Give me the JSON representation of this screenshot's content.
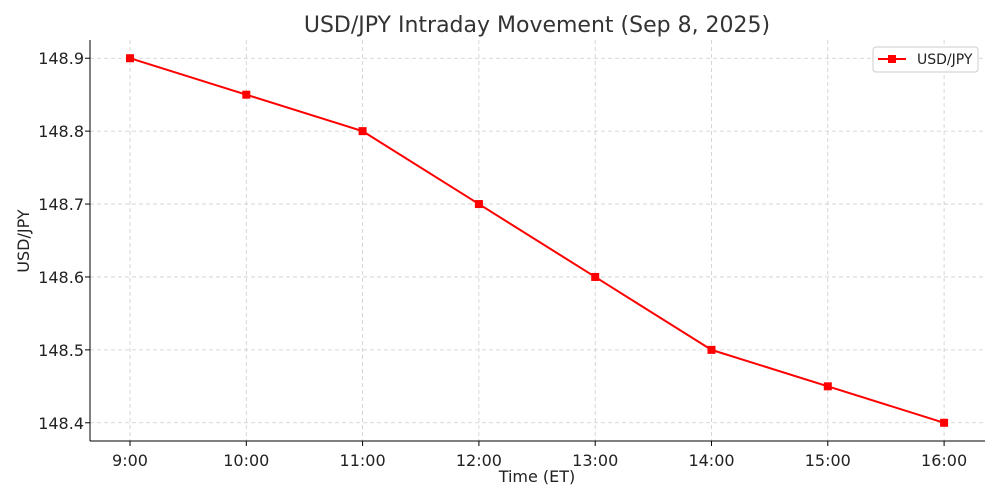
{
  "chart_data": {
    "type": "line",
    "title": "USD/JPY Intraday Movement (Sep 8, 2025)",
    "xlabel": "Time (ET)",
    "ylabel": "USD/JPY",
    "categories": [
      "9:00",
      "10:00",
      "11:00",
      "12:00",
      "13:00",
      "14:00",
      "15:00",
      "16:00"
    ],
    "series": [
      {
        "name": "USD/JPY",
        "values": [
          148.9,
          148.85,
          148.8,
          148.7,
          148.6,
          148.5,
          148.45,
          148.4
        ],
        "color": "#ff0000",
        "marker": "square"
      }
    ],
    "y_ticks": [
      "148.4",
      "148.5",
      "148.6",
      "148.7",
      "148.8",
      "148.9"
    ],
    "ylim": [
      148.375,
      148.925
    ],
    "grid": true,
    "legend_position": "top-right"
  }
}
